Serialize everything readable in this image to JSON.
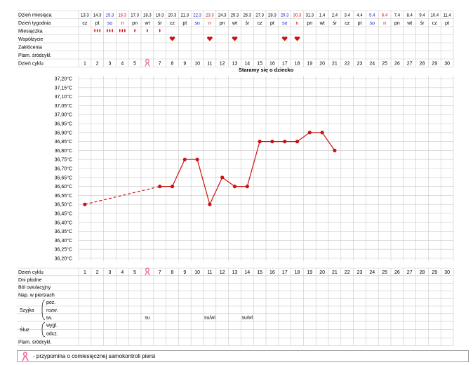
{
  "top_labels": [
    "Dzień miesiąca",
    "Dzień tygodnia",
    "Miesiączka",
    "Współżycie",
    "Zakłócenia",
    "Plam. śródcykl.",
    "Dzień cyklu"
  ],
  "bottom_labels": [
    "Dzień cyklu",
    "Dni płodne",
    "Ból owulacyjny",
    "Nap. w piersiach"
  ],
  "szyjka_label": "Szyjka",
  "szyjka_sub": [
    "poz.",
    "rozw.",
    "tw."
  ],
  "sluz_label": "Śluz",
  "sluz_sub": [
    "wygl.",
    "odcz."
  ],
  "plam_bottom_label": "Plam. śródcykl.",
  "section_title": "Staramy się o dziecko",
  "dates": [
    "13.3",
    "14.3",
    "15.3",
    "16.3",
    "17.3",
    "18.3",
    "19.3",
    "20.3",
    "21.3",
    "22.3",
    "23.3",
    "24.3",
    "25.3",
    "26.3",
    "27.3",
    "28.3",
    "29.3",
    "30.3",
    "31.3",
    "1.4",
    "2.4",
    "3.4",
    "4.4",
    "5.4",
    "6.4",
    "7.4",
    "8.4",
    "9.4",
    "10.4",
    "11.4"
  ],
  "weekdays": [
    "cz",
    "pt",
    "so",
    "n",
    "pn",
    "wt",
    "śr",
    "cz",
    "pt",
    "so",
    "n",
    "pn",
    "wt",
    "śr",
    "cz",
    "pt",
    "so",
    "n",
    "pn",
    "wt",
    "śr",
    "cz",
    "pt",
    "so",
    "n",
    "pn",
    "wt",
    "śr",
    "cz",
    "pt"
  ],
  "weekday_colors": {
    "so": "#2222cc",
    "n": "#cc1111",
    "default": "#000000"
  },
  "cycle_days": [
    "1",
    "2",
    "3",
    "4",
    "5",
    "6",
    "7",
    "8",
    "9",
    "10",
    "11",
    "12",
    "13",
    "14",
    "15",
    "16",
    "17",
    "18",
    "19",
    "20",
    "21",
    "22",
    "23",
    "24",
    "25",
    "26",
    "27",
    "28",
    "29",
    "30"
  ],
  "menstruation": [
    {
      "day": 2,
      "drops": 3
    },
    {
      "day": 3,
      "drops": 3
    },
    {
      "day": 4,
      "drops": 3
    },
    {
      "day": 5,
      "drops": 1
    },
    {
      "day": 6,
      "drops": 1
    },
    {
      "day": 7,
      "drops": 1
    }
  ],
  "intercourse_days": [
    8,
    11,
    13,
    17,
    18
  ],
  "breast_reminder_day": 6,
  "mucus_notes": [
    {
      "day": 6,
      "text": "su"
    },
    {
      "day": 11,
      "text": "su/wi"
    },
    {
      "day": 14,
      "text": "su/wi"
    }
  ],
  "legend_text": "- przypomina o comiesięcznej samokontroli piersi",
  "colors": {
    "line": "#cc1111",
    "grid": "#c8c8c8",
    "heart": "#cc1111",
    "drop": "#cc1111",
    "ribbon": "#ee77aa"
  },
  "chart_data": {
    "type": "line",
    "title": "Staramy się o dziecko",
    "xlabel": "Dzień cyklu",
    "ylabel": "",
    "ylim": [
      36.2,
      37.2
    ],
    "y_ticks": [
      "37,20°C",
      "37,15°C",
      "37,10°C",
      "37,05°C",
      "37,00°C",
      "36,95°C",
      "36,90°C",
      "36,85°C",
      "36,80°C",
      "36,75°C",
      "36,70°C",
      "36,65°C",
      "36,60°C",
      "36,55°C",
      "36,50°C",
      "36,45°C",
      "36,40°C",
      "36,35°C",
      "36,30°C",
      "36,25°C",
      "36,20°C"
    ],
    "grid": true,
    "series": [
      {
        "points": [
          {
            "x": 1,
            "y": 36.5
          },
          {
            "x": 7,
            "y": 36.6
          },
          {
            "x": 8,
            "y": 36.6
          },
          {
            "x": 9,
            "y": 36.75
          },
          {
            "x": 10,
            "y": 36.75
          },
          {
            "x": 11,
            "y": 36.5
          },
          {
            "x": 12,
            "y": 36.65
          },
          {
            "x": 13,
            "y": 36.6
          },
          {
            "x": 14,
            "y": 36.6
          },
          {
            "x": 15,
            "y": 36.85
          },
          {
            "x": 16,
            "y": 36.85
          },
          {
            "x": 17,
            "y": 36.85
          },
          {
            "x": 18,
            "y": 36.85
          },
          {
            "x": 19,
            "y": 36.9
          },
          {
            "x": 20,
            "y": 36.9
          },
          {
            "x": 21,
            "y": 36.8
          }
        ],
        "dashed_segments": [
          [
            1,
            7
          ]
        ]
      }
    ]
  }
}
